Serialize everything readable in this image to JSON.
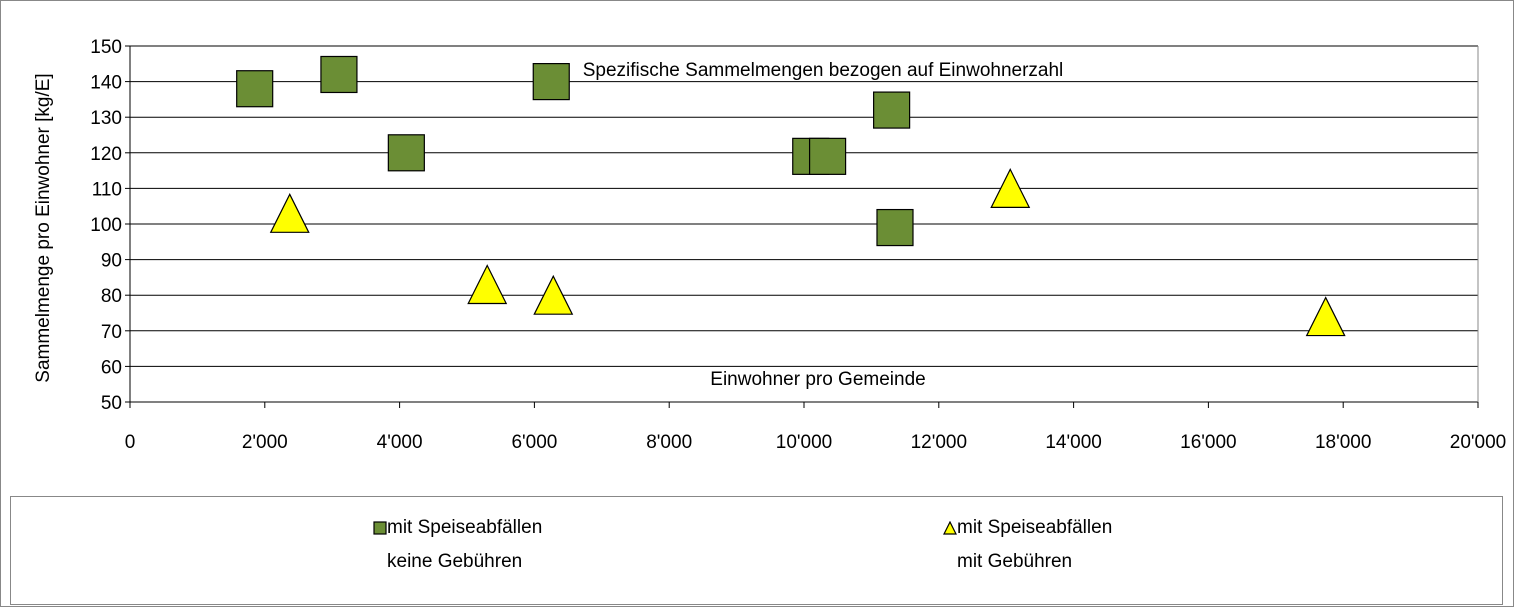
{
  "chart_data": {
    "type": "scatter",
    "title": "Spezifische Sammelmengen bezogen auf Einwohnerzahl",
    "x_label": "Einwohner pro Gemeinde",
    "y_label": "Sammelmenge pro Einwohner [kg/E]",
    "xlim": [
      0,
      20000
    ],
    "xticks": [
      0,
      {
        "value": 2000,
        "label": "2'000"
      },
      {
        "value": 4000,
        "label": "4'000"
      },
      {
        "value": 6000,
        "label": "6'000"
      },
      {
        "value": 8000,
        "label": "8'000"
      },
      {
        "value": 10000,
        "label": "10'000"
      },
      {
        "value": 12000,
        "label": "12'000"
      },
      {
        "value": 14000,
        "label": "14'000"
      },
      {
        "value": 16000,
        "label": "16'000"
      },
      {
        "value": 18000,
        "label": "18'000"
      },
      {
        "value": 20000,
        "label": "20'000"
      }
    ],
    "ylim": [
      50,
      150
    ],
    "yticks": [
      50,
      60,
      70,
      80,
      90,
      100,
      110,
      120,
      130,
      140,
      150
    ],
    "grid": true,
    "legend": "bottom",
    "series": [
      {
        "name": "mit Speiseabfällen\nkeine Gebühren",
        "color": "#6b8e35",
        "marker": "square",
        "x": [
          1850,
          3100,
          4100,
          6250,
          10100,
          10350,
          11300,
          11350
        ],
        "values": [
          138,
          142,
          120,
          140,
          119,
          119,
          132,
          99
        ]
      },
      {
        "name": "mit Speiseabfällen\nmit Gebühren",
        "color": "#ffff00",
        "marker": "triangle",
        "x": [
          2370,
          5300,
          6280,
          13060,
          17740
        ],
        "values": [
          103,
          83,
          80,
          110,
          74
        ]
      }
    ]
  }
}
